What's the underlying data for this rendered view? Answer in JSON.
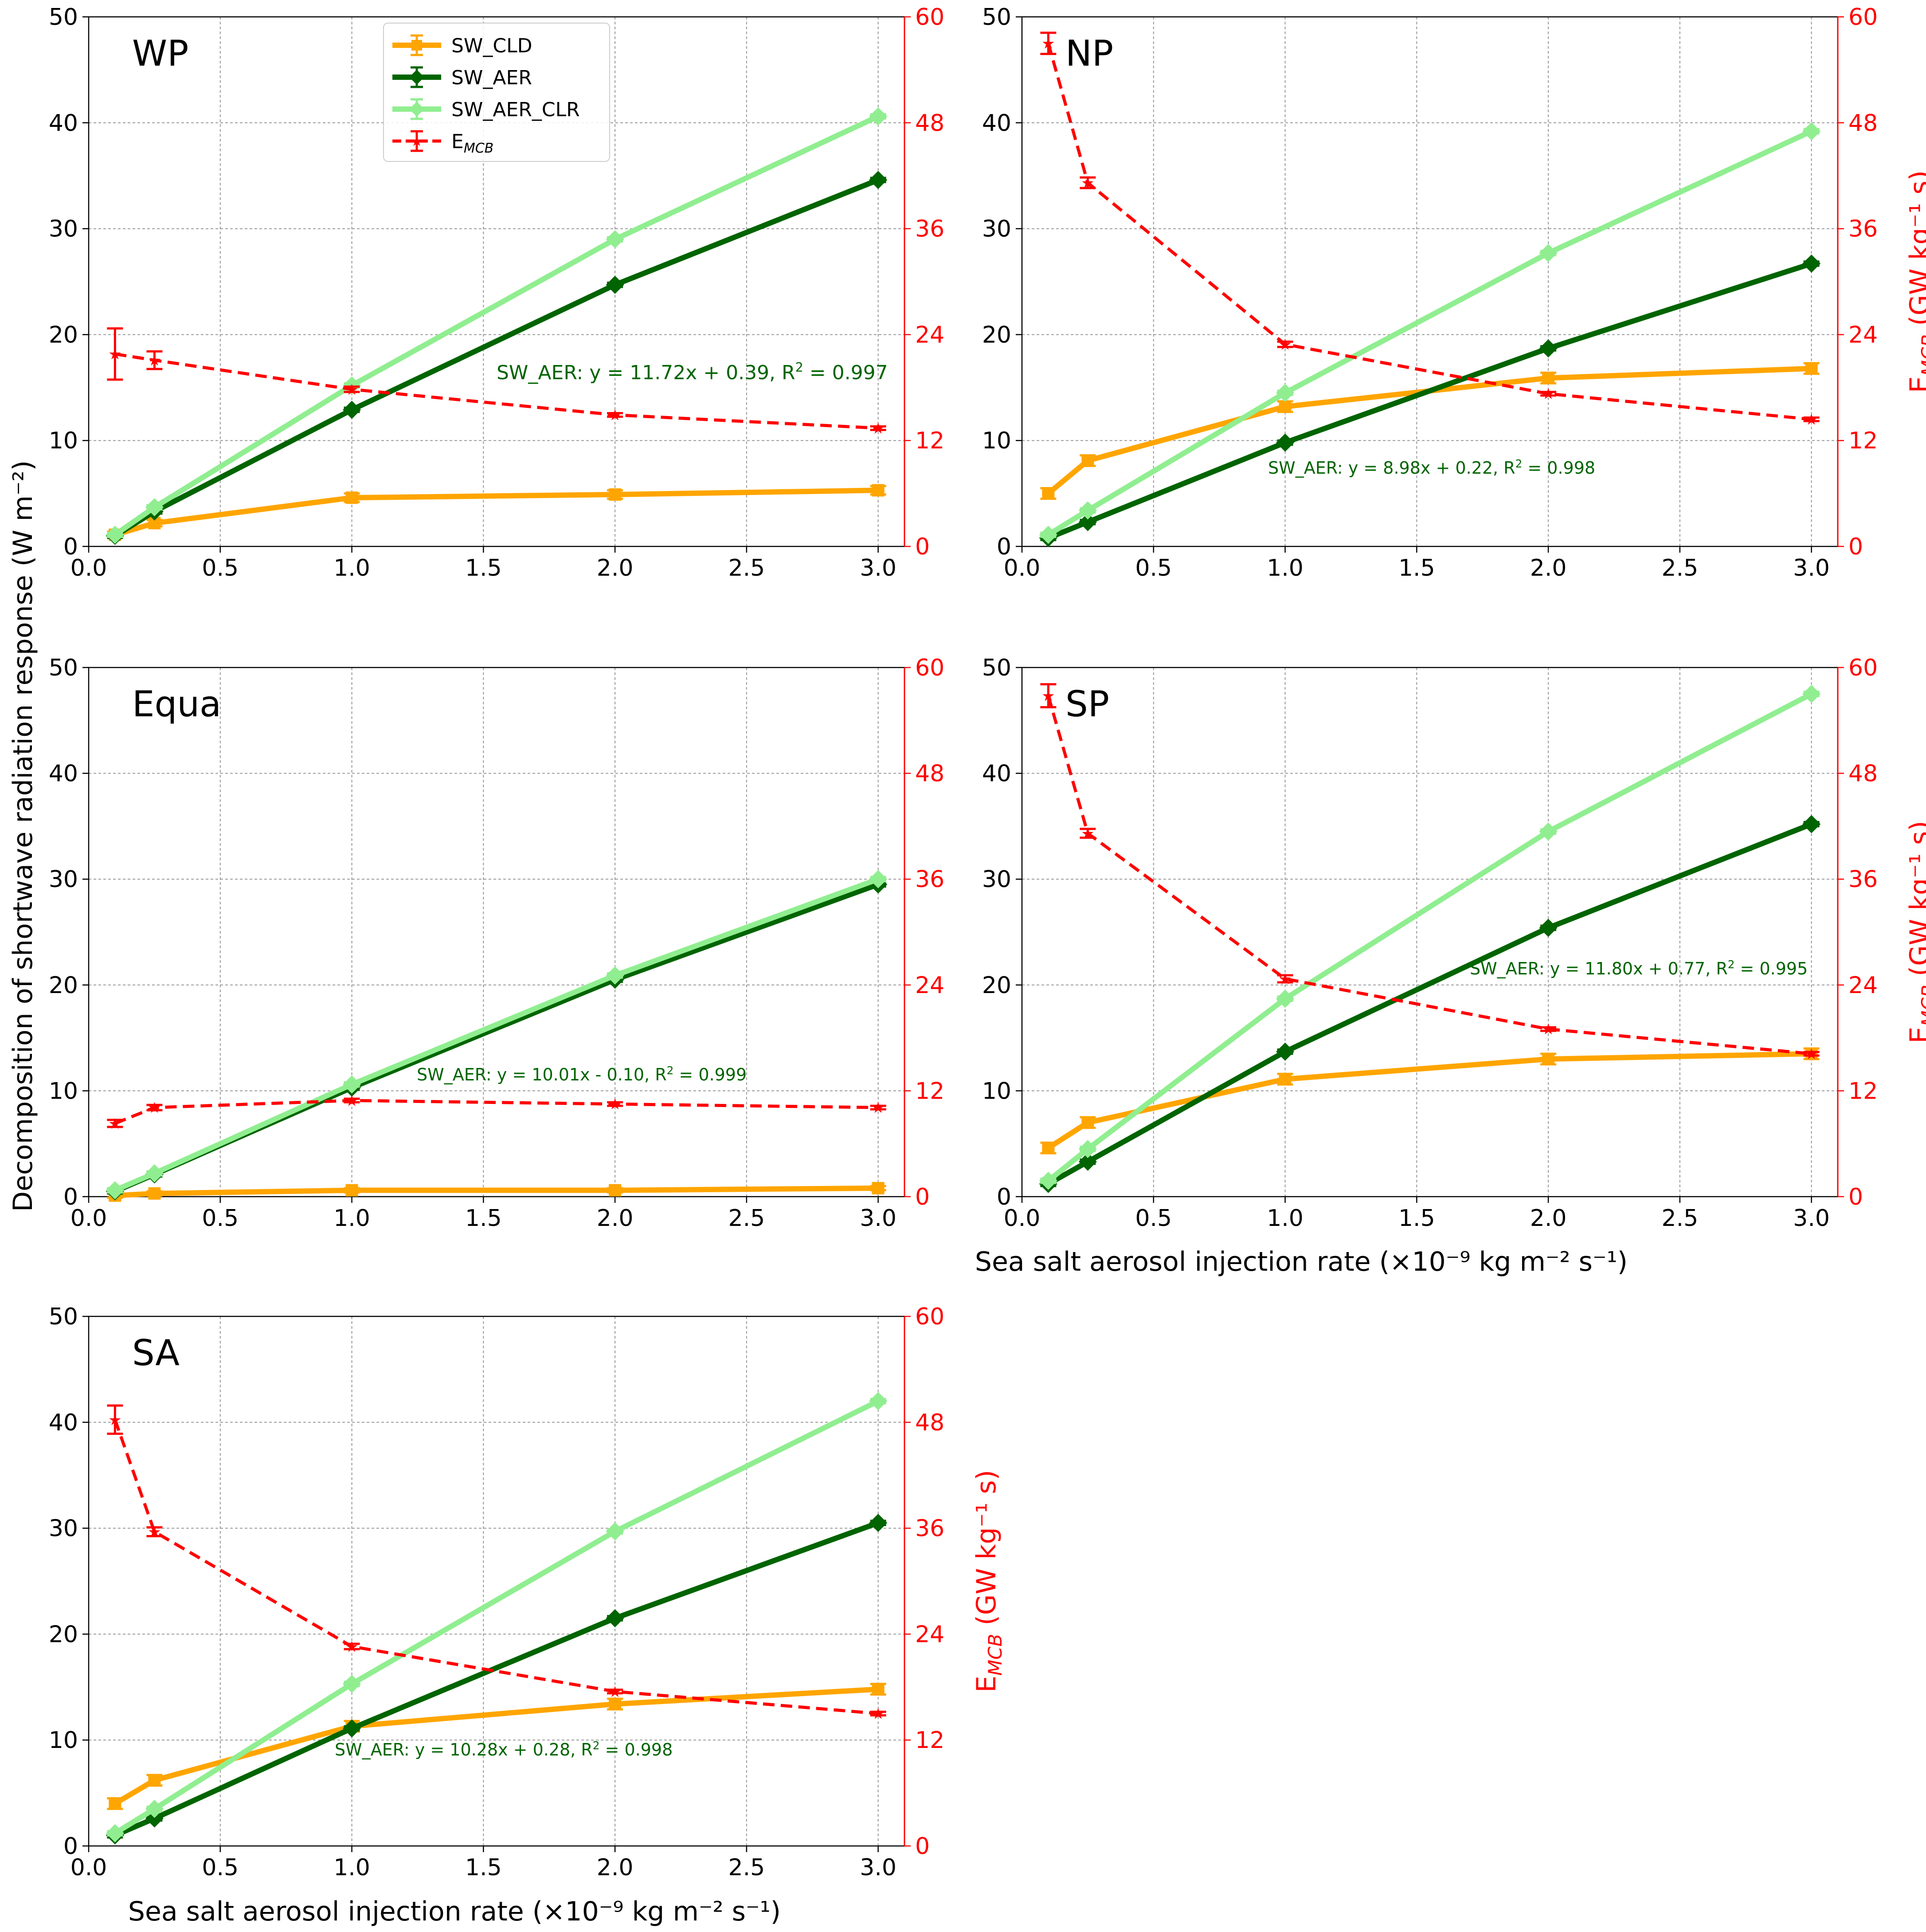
{
  "figure": {
    "shared_ylabel": "Decomposition of shortwave radiation response (W m⁻²)",
    "xlabel_right_middle": "Sea salt aerosol injection rate (×10⁻⁹ kg m⁻² s⁻¹)",
    "xlabel_bottom": "Sea salt aerosol injection rate (×10⁻⁹ kg m⁻² s⁻¹)",
    "right_ylabel": "E_MCB (GW kg⁻¹ s)",
    "legend": [
      "SW_CLD",
      "SW_AER",
      "SW_AER_CLR",
      "E_MCB"
    ],
    "colors": {
      "SW_CLD": "#ffa500",
      "SW_AER": "#006400",
      "SW_AER_CLR": "#90ee90",
      "E_MCB": "#ff0000"
    }
  },
  "chart_data": [
    {
      "type": "line",
      "region": "WP",
      "title": "WP",
      "x": [
        0.1,
        0.25,
        1.0,
        2.0,
        3.0
      ],
      "xlim": [
        0.0,
        3.1
      ],
      "ylim": [
        0,
        50
      ],
      "y2lim": [
        0,
        60
      ],
      "xticks": [
        "0.0",
        "0.5",
        "1.0",
        "1.5",
        "2.0",
        "2.5",
        "3.0"
      ],
      "yticks": [
        "0",
        "10",
        "20",
        "30",
        "40",
        "50"
      ],
      "y2ticks": [
        "0",
        "12",
        "24",
        "36",
        "48",
        "60"
      ],
      "series": [
        {
          "name": "SW_CLD",
          "values": [
            1.1,
            2.2,
            4.6,
            4.9,
            5.3
          ],
          "err": [
            0.3,
            0.3,
            0.4,
            0.4,
            0.4
          ]
        },
        {
          "name": "SW_AER",
          "values": [
            1.0,
            3.3,
            12.9,
            24.7,
            34.6
          ],
          "err": [
            0.2,
            0.2,
            0.2,
            0.2,
            0.2
          ]
        },
        {
          "name": "SW_AER_CLR",
          "values": [
            1.1,
            3.7,
            15.2,
            29.0,
            40.6
          ],
          "err": [
            0.2,
            0.2,
            0.2,
            0.2,
            0.2
          ]
        },
        {
          "name": "E_MCB",
          "axis": "right",
          "values": [
            21.8,
            21.1,
            17.8,
            14.9,
            13.4
          ],
          "err": [
            2.9,
            1.0,
            0.3,
            0.2,
            0.2
          ]
        }
      ],
      "annotation": "SW_AER: y = 11.72x + 0.39, R² = 0.997"
    },
    {
      "type": "line",
      "region": "NP",
      "title": "NP",
      "x": [
        0.1,
        0.25,
        1.0,
        2.0,
        3.0
      ],
      "xlim": [
        0.0,
        3.1
      ],
      "ylim": [
        0,
        50
      ],
      "y2lim": [
        0,
        60
      ],
      "xticks": [
        "0.0",
        "0.5",
        "1.0",
        "1.5",
        "2.0",
        "2.5",
        "3.0"
      ],
      "yticks": [
        "0",
        "10",
        "20",
        "30",
        "40",
        "50"
      ],
      "y2ticks": [
        "0",
        "12",
        "24",
        "36",
        "48",
        "60"
      ],
      "series": [
        {
          "name": "SW_CLD",
          "values": [
            5.0,
            8.1,
            13.2,
            15.9,
            16.8
          ],
          "err": [
            0.5,
            0.5,
            0.5,
            0.5,
            0.5
          ]
        },
        {
          "name": "SW_AER",
          "values": [
            0.8,
            2.3,
            9.8,
            18.7,
            26.7
          ],
          "err": [
            0.2,
            0.2,
            0.2,
            0.2,
            0.2
          ]
        },
        {
          "name": "SW_AER_CLR",
          "values": [
            1.1,
            3.4,
            14.5,
            27.7,
            39.2
          ],
          "err": [
            0.2,
            0.2,
            0.2,
            0.2,
            0.2
          ]
        },
        {
          "name": "E_MCB",
          "axis": "right",
          "values": [
            57.0,
            41.2,
            22.9,
            17.3,
            14.4
          ],
          "err": [
            1.2,
            0.6,
            0.3,
            0.2,
            0.2
          ]
        }
      ],
      "annotation": "SW_AER: y = 8.98x + 0.22, R² = 0.998"
    },
    {
      "type": "line",
      "region": "Equa",
      "title": "Equa",
      "x": [
        0.1,
        0.25,
        1.0,
        2.0,
        3.0
      ],
      "xlim": [
        0.0,
        3.1
      ],
      "ylim": [
        0,
        50
      ],
      "y2lim": [
        0,
        60
      ],
      "xticks": [
        "0.0",
        "0.5",
        "1.0",
        "1.5",
        "2.0",
        "2.5",
        "3.0"
      ],
      "yticks": [
        "0",
        "10",
        "20",
        "30",
        "40",
        "50"
      ],
      "y2ticks": [
        "0",
        "12",
        "24",
        "36",
        "48",
        "60"
      ],
      "series": [
        {
          "name": "SW_CLD",
          "values": [
            0.1,
            0.3,
            0.6,
            0.6,
            0.8
          ],
          "err": [
            0.2,
            0.2,
            0.2,
            0.2,
            0.2
          ]
        },
        {
          "name": "SW_AER",
          "values": [
            0.5,
            2.1,
            10.3,
            20.5,
            29.5
          ],
          "err": [
            0.2,
            0.2,
            0.2,
            0.2,
            0.2
          ]
        },
        {
          "name": "SW_AER_CLR",
          "values": [
            0.6,
            2.2,
            10.6,
            20.9,
            30.0
          ],
          "err": [
            0.2,
            0.2,
            0.2,
            0.2,
            0.2
          ]
        },
        {
          "name": "E_MCB",
          "axis": "right",
          "values": [
            8.3,
            10.1,
            10.9,
            10.5,
            10.1
          ],
          "err": [
            0.4,
            0.3,
            0.2,
            0.2,
            0.2
          ]
        }
      ],
      "annotation": "SW_AER: y = 10.01x - 0.10, R² = 0.999"
    },
    {
      "type": "line",
      "region": "SP",
      "title": "SP",
      "x": [
        0.1,
        0.25,
        1.0,
        2.0,
        3.0
      ],
      "xlim": [
        0.0,
        3.1
      ],
      "ylim": [
        0,
        50
      ],
      "y2lim": [
        0,
        60
      ],
      "xticks": [
        "0.0",
        "0.5",
        "1.0",
        "1.5",
        "2.0",
        "2.5",
        "3.0"
      ],
      "yticks": [
        "0",
        "10",
        "20",
        "30",
        "40",
        "50"
      ],
      "y2ticks": [
        "0",
        "12",
        "24",
        "36",
        "48",
        "60"
      ],
      "series": [
        {
          "name": "SW_CLD",
          "values": [
            4.6,
            7.0,
            11.1,
            13.0,
            13.5
          ],
          "err": [
            0.5,
            0.5,
            0.5,
            0.5,
            0.5
          ]
        },
        {
          "name": "SW_AER",
          "values": [
            1.2,
            3.3,
            13.7,
            25.4,
            35.2
          ],
          "err": [
            0.2,
            0.2,
            0.2,
            0.2,
            0.2
          ]
        },
        {
          "name": "SW_AER_CLR",
          "values": [
            1.5,
            4.5,
            18.7,
            34.5,
            47.5
          ],
          "err": [
            0.2,
            0.2,
            0.2,
            0.2,
            0.2
          ]
        },
        {
          "name": "E_MCB",
          "axis": "right",
          "values": [
            56.8,
            41.2,
            24.7,
            19.0,
            16.2
          ],
          "err": [
            1.3,
            0.5,
            0.4,
            0.2,
            0.2
          ]
        }
      ],
      "annotation": "SW_AER: y = 11.80x + 0.77, R² = 0.995"
    },
    {
      "type": "line",
      "region": "SA",
      "title": "SA",
      "x": [
        0.1,
        0.25,
        1.0,
        2.0,
        3.0
      ],
      "xlim": [
        0.0,
        3.1
      ],
      "ylim": [
        0,
        50
      ],
      "y2lim": [
        0,
        60
      ],
      "xticks": [
        "0.0",
        "0.5",
        "1.0",
        "1.5",
        "2.0",
        "2.5",
        "3.0"
      ],
      "yticks": [
        "0",
        "10",
        "20",
        "30",
        "40",
        "50"
      ],
      "y2ticks": [
        "0",
        "12",
        "24",
        "36",
        "48",
        "60"
      ],
      "series": [
        {
          "name": "SW_CLD",
          "values": [
            4.0,
            6.2,
            11.3,
            13.4,
            14.8
          ],
          "err": [
            0.5,
            0.5,
            0.5,
            0.5,
            0.5
          ]
        },
        {
          "name": "SW_AER",
          "values": [
            1.0,
            2.6,
            11.1,
            21.5,
            30.5
          ],
          "err": [
            0.2,
            0.2,
            0.2,
            0.2,
            0.2
          ]
        },
        {
          "name": "SW_AER_CLR",
          "values": [
            1.2,
            3.5,
            15.3,
            29.7,
            42.0
          ],
          "err": [
            0.2,
            0.2,
            0.2,
            0.2,
            0.2
          ]
        },
        {
          "name": "E_MCB",
          "axis": "right",
          "values": [
            48.3,
            35.6,
            22.6,
            17.5,
            15.0
          ],
          "err": [
            1.6,
            0.5,
            0.3,
            0.2,
            0.2
          ]
        }
      ],
      "annotation": "SW_AER: y = 10.28x + 0.28, R² = 0.998"
    }
  ]
}
